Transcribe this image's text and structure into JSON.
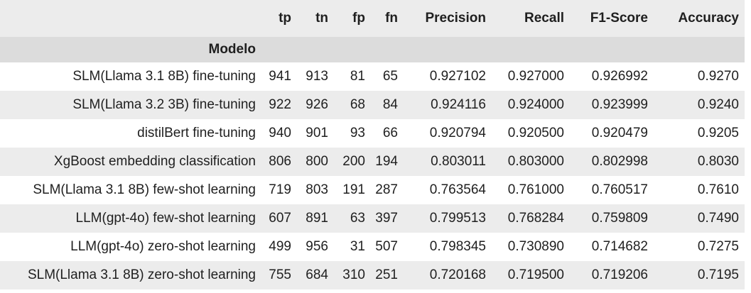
{
  "table": {
    "columns": [
      "tp",
      "tn",
      "fp",
      "fn",
      "Precision",
      "Recall",
      "F1-Score",
      "Accuracy"
    ],
    "index_name": "Modelo",
    "rows": [
      {
        "model": "SLM(Llama 3.1 8B) fine-tuning",
        "tp": "941",
        "tn": "913",
        "fp": "81",
        "fn": "65",
        "precision": "0.927102",
        "recall": "0.927000",
        "f1": "0.926992",
        "accuracy": "0.9270"
      },
      {
        "model": "SLM(Llama 3.2 3B) fine-tuning",
        "tp": "922",
        "tn": "926",
        "fp": "68",
        "fn": "84",
        "precision": "0.924116",
        "recall": "0.924000",
        "f1": "0.923999",
        "accuracy": "0.9240"
      },
      {
        "model": "distilBert fine-tuning",
        "tp": "940",
        "tn": "901",
        "fp": "93",
        "fn": "66",
        "precision": "0.920794",
        "recall": "0.920500",
        "f1": "0.920479",
        "accuracy": "0.9205"
      },
      {
        "model": "XgBoost embedding classification",
        "tp": "806",
        "tn": "800",
        "fp": "200",
        "fn": "194",
        "precision": "0.803011",
        "recall": "0.803000",
        "f1": "0.802998",
        "accuracy": "0.8030"
      },
      {
        "model": "SLM(Llama 3.1 8B) few-shot learning",
        "tp": "719",
        "tn": "803",
        "fp": "191",
        "fn": "287",
        "precision": "0.763564",
        "recall": "0.761000",
        "f1": "0.760517",
        "accuracy": "0.7610"
      },
      {
        "model": "LLM(gpt-4o) few-shot learning",
        "tp": "607",
        "tn": "891",
        "fp": "63",
        "fn": "397",
        "precision": "0.799513",
        "recall": "0.768284",
        "f1": "0.759809",
        "accuracy": "0.7490"
      },
      {
        "model": "LLM(gpt-4o) zero-shot learning",
        "tp": "499",
        "tn": "956",
        "fp": "31",
        "fn": "507",
        "precision": "0.798345",
        "recall": "0.730890",
        "f1": "0.714682",
        "accuracy": "0.7275"
      },
      {
        "model": "SLM(Llama 3.1 8B) zero-shot learning",
        "tp": "755",
        "tn": "684",
        "fp": "310",
        "fn": "251",
        "precision": "0.720168",
        "recall": "0.719500",
        "f1": "0.719206",
        "accuracy": "0.7195"
      }
    ]
  },
  "chart_data": {
    "type": "table",
    "columns": [
      "tp",
      "tn",
      "fp",
      "fn",
      "Precision",
      "Recall",
      "F1-Score",
      "Accuracy"
    ],
    "index_label": "Modelo",
    "rows": [
      [
        "SLM(Llama 3.1 8B) fine-tuning",
        941,
        913,
        81,
        65,
        0.927102,
        0.927,
        0.926992,
        0.927
      ],
      [
        "SLM(Llama 3.2 3B) fine-tuning",
        922,
        926,
        68,
        84,
        0.924116,
        0.924,
        0.923999,
        0.924
      ],
      [
        "distilBert fine-tuning",
        940,
        901,
        93,
        66,
        0.920794,
        0.9205,
        0.920479,
        0.9205
      ],
      [
        "XgBoost embedding classification",
        806,
        800,
        200,
        194,
        0.803011,
        0.803,
        0.802998,
        0.803
      ],
      [
        "SLM(Llama 3.1 8B) few-shot learning",
        719,
        803,
        191,
        287,
        0.763564,
        0.761,
        0.760517,
        0.761
      ],
      [
        "LLM(gpt-4o) few-shot learning",
        607,
        891,
        63,
        397,
        0.799513,
        0.768284,
        0.759809,
        0.749
      ],
      [
        "LLM(gpt-4o) zero-shot learning",
        499,
        956,
        31,
        507,
        0.798345,
        0.73089,
        0.714682,
        0.7275
      ],
      [
        "SLM(Llama 3.1 8B) zero-shot learning",
        755,
        684,
        310,
        251,
        0.720168,
        0.7195,
        0.719206,
        0.7195
      ]
    ]
  }
}
